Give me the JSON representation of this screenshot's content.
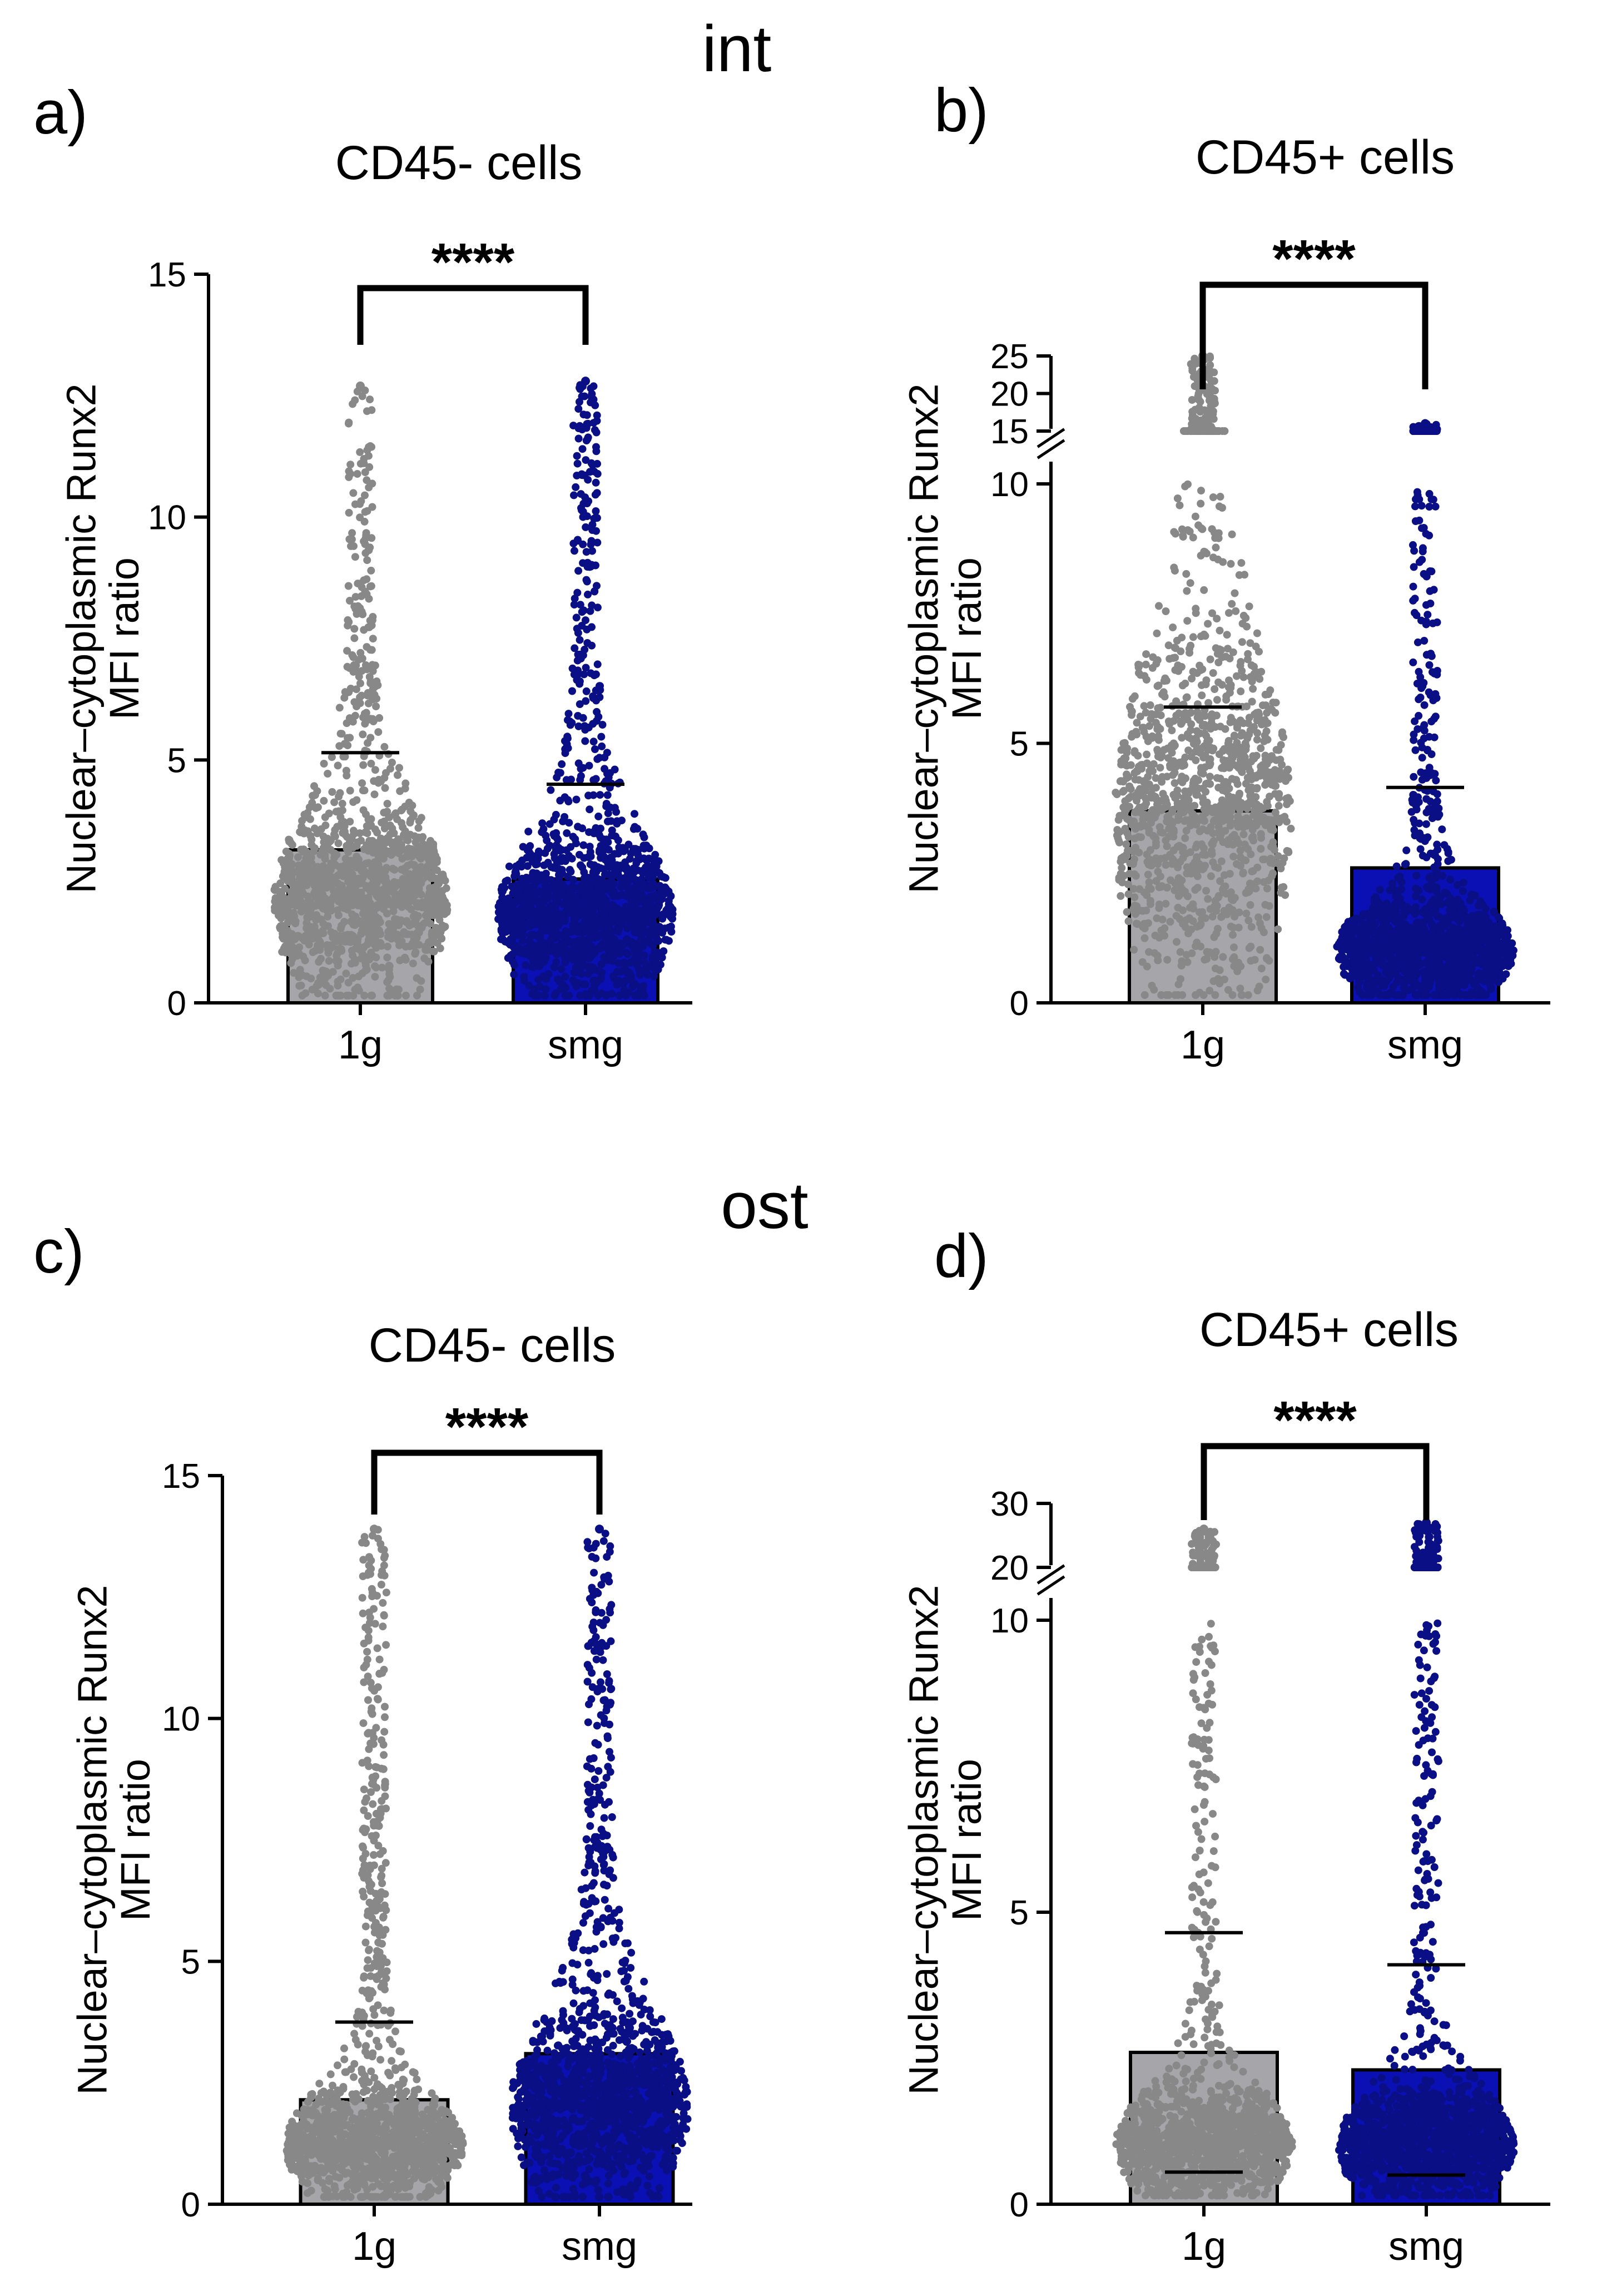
{
  "figure": {
    "section_top": "int",
    "section_bottom": "ost"
  },
  "colors": {
    "g1_bar": "#a6a6aa",
    "g1_dots": "#888888",
    "smg_bar": "#0b10b4",
    "smg_dots": "#0a0f86",
    "axis": "#000000"
  },
  "chart_data": [
    {
      "id": "a",
      "panel_label": "a)",
      "type": "bar",
      "title": "CD45- cells",
      "ylabel_line1": "Nuclear–cytoplasmic Runx2",
      "ylabel_line2": "MFI ratio",
      "categories": [
        "1g",
        "smg"
      ],
      "values": [
        3.15,
        2.55
      ],
      "sd_upper": [
        5.15,
        4.5
      ],
      "sd_lower": [
        null,
        null
      ],
      "point_max": [
        12.7,
        12.8
      ],
      "point_mode": [
        2.0,
        1.8
      ],
      "ylim": [
        0,
        15
      ],
      "yticks": [
        0,
        5,
        10,
        15
      ],
      "ytick_labels": [
        "0",
        "5",
        "10",
        "15"
      ],
      "broken_axis": false,
      "significance": "****"
    },
    {
      "id": "b",
      "panel_label": "b)",
      "type": "bar",
      "title": "CD45+ cells",
      "ylabel_line1": "Nuclear–cytoplasmic Runx2",
      "ylabel_line2": "MFI ratio",
      "categories": [
        "1g",
        "smg"
      ],
      "values": [
        3.7,
        2.6
      ],
      "sd_upper": [
        5.7,
        4.15
      ],
      "sd_lower": [
        null,
        null
      ],
      "point_max": [
        25,
        16
      ],
      "point_mode": [
        3.5,
        1.0
      ],
      "ylim": [
        0,
        25
      ],
      "yticks": [
        0,
        5,
        10,
        15,
        20,
        25
      ],
      "ytick_labels": [
        "0",
        "5",
        "10",
        "15",
        "20",
        "25"
      ],
      "broken_axis": true,
      "axis_break": [
        10,
        15
      ],
      "significance": "****"
    },
    {
      "id": "c",
      "panel_label": "c)",
      "type": "bar",
      "title": "CD45- cells",
      "ylabel_line1": "Nuclear–cytoplasmic Runx2",
      "ylabel_line2": "MFI ratio",
      "categories": [
        "1g",
        "smg"
      ],
      "values": [
        2.15,
        3.1
      ],
      "sd_upper": [
        3.75,
        null
      ],
      "sd_lower": [
        null,
        null
      ],
      "point_max": [
        13.9,
        13.9
      ],
      "point_mode": [
        1.2,
        2.0
      ],
      "ylim": [
        0,
        15
      ],
      "yticks": [
        0,
        5,
        10,
        15
      ],
      "ytick_labels": [
        "0",
        "5",
        "10",
        "15"
      ],
      "broken_axis": false,
      "significance": "****"
    },
    {
      "id": "d",
      "panel_label": "d)",
      "type": "bar",
      "title": "CD45+ cells",
      "ylabel_line1": "Nuclear–cytoplasmic Runx2",
      "ylabel_line2": "MFI ratio",
      "categories": [
        "1g",
        "smg"
      ],
      "values": [
        2.6,
        2.3
      ],
      "sd_upper": [
        4.65,
        4.1
      ],
      "sd_lower": [
        0.55,
        0.5
      ],
      "point_max": [
        26,
        27
      ],
      "point_mode": [
        1.0,
        1.0
      ],
      "ylim": [
        0,
        30
      ],
      "yticks": [
        0,
        5,
        10,
        20,
        30
      ],
      "ytick_labels": [
        "0",
        "5",
        "10",
        "20",
        "30"
      ],
      "broken_axis": true,
      "axis_break": [
        10,
        20
      ],
      "significance": "****"
    }
  ]
}
